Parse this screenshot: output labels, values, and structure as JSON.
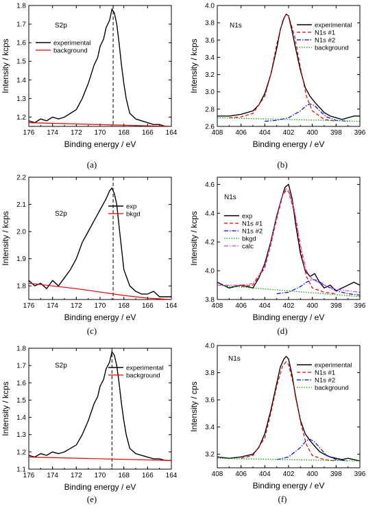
{
  "chart_data": [
    {
      "panel": "(a)",
      "type": "line",
      "annotation": "S2p",
      "xlabel": "Binding energy / eV",
      "ylabel": "Intensity / kcps",
      "xlim": [
        176,
        164
      ],
      "ylim": [
        1.15,
        1.8
      ],
      "xticks": [
        "176",
        "174",
        "172",
        "170",
        "168",
        "166",
        "164"
      ],
      "yticks": [
        "1.2",
        "1.3",
        "1.4",
        "1.5",
        "1.6",
        "1.7",
        "1.8"
      ],
      "vline_x": 168.9,
      "legend_position": "top-left",
      "series": [
        {
          "name": "experimental",
          "color": "#000000",
          "style": "solid",
          "x": [
            176,
            175.5,
            175,
            174.5,
            174,
            173.5,
            173,
            172.5,
            172,
            171.5,
            171,
            170.5,
            170.2,
            170,
            169.7,
            169.5,
            169.2,
            169,
            168.8,
            168.6,
            168.4,
            168.2,
            168,
            167.8,
            167.5,
            167,
            166.5,
            166,
            165.5,
            165,
            164.5,
            164.2
          ],
          "y": [
            1.18,
            1.17,
            1.19,
            1.18,
            1.2,
            1.19,
            1.2,
            1.22,
            1.24,
            1.3,
            1.38,
            1.48,
            1.52,
            1.58,
            1.62,
            1.68,
            1.72,
            1.78,
            1.76,
            1.7,
            1.6,
            1.48,
            1.38,
            1.3,
            1.22,
            1.19,
            1.18,
            1.17,
            1.16,
            1.16,
            1.15,
            1.15
          ]
        },
        {
          "name": "background",
          "color": "#e00000",
          "style": "solid",
          "x": [
            176,
            164.2
          ],
          "y": [
            1.17,
            1.15
          ]
        }
      ]
    },
    {
      "panel": "(b)",
      "type": "line",
      "annotation": "N1s",
      "xlabel": "Binding energy / eV",
      "ylabel": "Intensity / kcps",
      "xlim": [
        408,
        396
      ],
      "ylim": [
        2.6,
        4.0
      ],
      "xticks": [
        "408",
        "406",
        "404",
        "402",
        "400",
        "398",
        "396"
      ],
      "yticks": [
        "2.6",
        "2.8",
        "3.0",
        "3.2",
        "3.4",
        "3.6",
        "3.8",
        "4.0"
      ],
      "legend_position": "top-right",
      "series": [
        {
          "name": "experimental",
          "color": "#000000",
          "style": "solid",
          "x": [
            408,
            407,
            406,
            405,
            404.5,
            404,
            403.5,
            403,
            402.7,
            402.4,
            402.2,
            402,
            401.7,
            401.4,
            401,
            400.6,
            400.2,
            399.8,
            399.4,
            399,
            398.5,
            398,
            397.5,
            397,
            396.5,
            396
          ],
          "y": [
            2.72,
            2.72,
            2.74,
            2.78,
            2.85,
            2.98,
            3.2,
            3.5,
            3.72,
            3.85,
            3.9,
            3.88,
            3.7,
            3.5,
            3.25,
            3.05,
            2.95,
            2.88,
            2.82,
            2.76,
            2.72,
            2.7,
            2.68,
            2.7,
            2.72,
            2.72
          ]
        },
        {
          "name": "N1s #1",
          "color": "#e00000",
          "style": "dashed",
          "x": [
            407,
            406,
            405,
            404,
            403.5,
            403,
            402.5,
            402.2,
            402,
            401.5,
            401,
            400.5,
            400,
            399,
            398
          ],
          "y": [
            2.7,
            2.71,
            2.75,
            2.95,
            3.2,
            3.55,
            3.82,
            3.9,
            3.88,
            3.65,
            3.28,
            2.95,
            2.78,
            2.68,
            2.66
          ]
        },
        {
          "name": "N1s #2",
          "color": "#0000dd",
          "style": "dashdot",
          "x": [
            404,
            403,
            402,
            401,
            400.5,
            400.2,
            399.8,
            399.3,
            398.8,
            398,
            397
          ],
          "y": [
            2.66,
            2.67,
            2.7,
            2.78,
            2.84,
            2.86,
            2.84,
            2.77,
            2.71,
            2.67,
            2.66
          ]
        },
        {
          "name": "background",
          "color": "#009900",
          "style": "dotted",
          "x": [
            408,
            396
          ],
          "y": [
            2.7,
            2.66
          ]
        }
      ]
    },
    {
      "panel": "(c)",
      "type": "line",
      "annotation": "S2p",
      "xlabel": "Binding energy / eV",
      "ylabel": "Intensity / kcps",
      "xlim": [
        176,
        164
      ],
      "ylim": [
        1.75,
        2.2
      ],
      "xticks": [
        "176",
        "174",
        "172",
        "170",
        "168",
        "166",
        "164"
      ],
      "yticks": [
        "1.8",
        "1.9",
        "2.0",
        "2.1",
        "2.2"
      ],
      "vline_x": 168.9,
      "legend_position": "top-right",
      "series": [
        {
          "name": "exp",
          "color": "#000000",
          "style": "solid",
          "x": [
            176,
            175.5,
            175,
            174.5,
            174,
            173.5,
            173,
            172.5,
            172,
            171.5,
            171,
            170.5,
            170,
            169.5,
            169.2,
            169,
            168.8,
            168.6,
            168.4,
            168.2,
            168,
            167.5,
            167,
            166.5,
            166,
            165.5,
            165,
            164.5,
            164
          ],
          "y": [
            1.82,
            1.8,
            1.81,
            1.79,
            1.82,
            1.8,
            1.83,
            1.86,
            1.9,
            1.96,
            2.0,
            2.04,
            2.08,
            2.12,
            2.15,
            2.16,
            2.14,
            2.1,
            2.02,
            1.94,
            1.86,
            1.8,
            1.78,
            1.77,
            1.77,
            1.78,
            1.76,
            1.76,
            1.76
          ]
        },
        {
          "name": "bkgd",
          "color": "#e00000",
          "style": "solid",
          "x": [
            176,
            172,
            168,
            166,
            164
          ],
          "y": [
            1.81,
            1.79,
            1.765,
            1.755,
            1.75
          ]
        }
      ]
    },
    {
      "panel": "(d)",
      "type": "line",
      "annotation": "N1s",
      "xlabel": "Binding energy / eV",
      "ylabel": "Intensity / kcps",
      "xlim": [
        408,
        396
      ],
      "ylim": [
        3.8,
        4.65
      ],
      "xticks": [
        "408",
        "406",
        "404",
        "402",
        "400",
        "398",
        "396"
      ],
      "yticks": [
        "3.8",
        "4.0",
        "4.2",
        "4.4",
        "4.6"
      ],
      "legend_position": "top-left",
      "series": [
        {
          "name": "exp",
          "color": "#000000",
          "style": "solid",
          "x": [
            408,
            407,
            406,
            405,
            404.5,
            404,
            403.5,
            403,
            402.6,
            402.3,
            402,
            401.7,
            401.4,
            401,
            400.6,
            400.2,
            399.8,
            399.4,
            399,
            398.5,
            398,
            397.5,
            397,
            396.5,
            396
          ],
          "y": [
            3.92,
            3.88,
            3.9,
            3.88,
            3.95,
            4.05,
            4.2,
            4.38,
            4.5,
            4.58,
            4.6,
            4.5,
            4.32,
            4.12,
            4.0,
            3.96,
            3.98,
            3.92,
            3.88,
            3.9,
            3.86,
            3.88,
            3.9,
            3.92,
            3.9
          ]
        },
        {
          "name": "N1s #1",
          "color": "#e00000",
          "style": "dashed",
          "x": [
            406,
            405,
            404,
            403.5,
            403,
            402.5,
            402.2,
            402,
            401.5,
            401,
            400.5,
            400,
            399,
            398
          ],
          "y": [
            3.89,
            3.9,
            4.02,
            4.18,
            4.36,
            4.52,
            4.56,
            4.55,
            4.4,
            4.15,
            3.96,
            3.88,
            3.85,
            3.84
          ]
        },
        {
          "name": "N1s #2",
          "color": "#0000dd",
          "style": "dashdot",
          "x": [
            403,
            402,
            401,
            400.5,
            400,
            399.5,
            399,
            398,
            397,
            396
          ],
          "y": [
            3.84,
            3.85,
            3.89,
            3.92,
            3.94,
            3.93,
            3.9,
            3.86,
            3.84,
            3.83
          ]
        },
        {
          "name": "bkgd",
          "color": "#009900",
          "style": "dotted",
          "x": [
            408,
            396
          ],
          "y": [
            3.9,
            3.82
          ]
        },
        {
          "name": "calc",
          "color": "#cc44cc",
          "style": "dashdot",
          "x": [
            408,
            406,
            405,
            404,
            403.5,
            403,
            402.5,
            402.2,
            402,
            401.5,
            401,
            400.5,
            400,
            399,
            398,
            396
          ],
          "y": [
            3.9,
            3.9,
            3.91,
            4.03,
            4.19,
            4.37,
            4.53,
            4.57,
            4.56,
            4.42,
            4.18,
            4.0,
            3.94,
            3.9,
            3.87,
            3.85
          ]
        }
      ]
    },
    {
      "panel": "(e)",
      "type": "line",
      "annotation": "S2p",
      "xlabel": "Binding energy / eV",
      "ylabel": "Intensity / kcps",
      "xlim": [
        176,
        164
      ],
      "ylim": [
        1.1,
        1.8
      ],
      "xticks": [
        "176",
        "174",
        "172",
        "170",
        "168",
        "166",
        "164"
      ],
      "yticks": [
        "1.1",
        "1.2",
        "1.3",
        "1.4",
        "1.5",
        "1.6",
        "1.7",
        "1.8"
      ],
      "vline_x": 169.0,
      "legend_position": "top-right",
      "series": [
        {
          "name": "experimental",
          "color": "#000000",
          "style": "solid",
          "x": [
            176,
            175.5,
            175,
            174.5,
            174,
            173.5,
            173,
            172.5,
            172,
            171.5,
            171,
            170.5,
            170.2,
            170,
            169.7,
            169.5,
            169.2,
            169,
            168.8,
            168.6,
            168.4,
            168.2,
            168,
            167.8,
            167.5,
            167,
            166.5,
            166,
            165.5,
            165,
            164.5,
            164
          ],
          "y": [
            1.18,
            1.17,
            1.19,
            1.18,
            1.2,
            1.19,
            1.2,
            1.22,
            1.24,
            1.3,
            1.38,
            1.48,
            1.52,
            1.58,
            1.62,
            1.68,
            1.72,
            1.78,
            1.76,
            1.7,
            1.6,
            1.48,
            1.38,
            1.3,
            1.22,
            1.19,
            1.18,
            1.17,
            1.16,
            1.16,
            1.15,
            1.15
          ]
        },
        {
          "name": "background",
          "color": "#e00000",
          "style": "solid",
          "x": [
            176,
            164
          ],
          "y": [
            1.17,
            1.15
          ]
        }
      ]
    },
    {
      "panel": "(f)",
      "type": "line",
      "annotation": "N1s",
      "xlabel": "Binding energy / eV",
      "ylabel": "Intensity / cps",
      "xlim": [
        408,
        396
      ],
      "ylim": [
        3.1,
        4.0
      ],
      "xticks": [
        "408",
        "406",
        "404",
        "402",
        "400",
        "398",
        "396"
      ],
      "yticks": [
        "3.2",
        "3.4",
        "3.6",
        "3.8",
        "4.0"
      ],
      "legend_position": "top-right",
      "series": [
        {
          "name": "experimental",
          "color": "#000000",
          "style": "solid",
          "x": [
            408,
            407,
            406,
            405,
            404.5,
            404,
            403.5,
            403,
            402.7,
            402.4,
            402.2,
            402,
            401.7,
            401.4,
            401,
            400.6,
            400.2,
            399.8,
            399.4,
            399,
            398.5,
            398,
            397.5,
            397,
            396.5,
            396
          ],
          "y": [
            3.18,
            3.17,
            3.18,
            3.2,
            3.25,
            3.35,
            3.52,
            3.72,
            3.84,
            3.9,
            3.92,
            3.9,
            3.78,
            3.62,
            3.45,
            3.35,
            3.3,
            3.26,
            3.22,
            3.2,
            3.18,
            3.17,
            3.16,
            3.17,
            3.16,
            3.15
          ]
        },
        {
          "name": "N1s #1",
          "color": "#e00000",
          "style": "dashed",
          "x": [
            406,
            405,
            404,
            403.5,
            403,
            402.5,
            402.2,
            402,
            401.5,
            401,
            400.5,
            400,
            399,
            398
          ],
          "y": [
            3.17,
            3.19,
            3.32,
            3.5,
            3.7,
            3.85,
            3.88,
            3.86,
            3.68,
            3.44,
            3.27,
            3.19,
            3.16,
            3.15
          ]
        },
        {
          "name": "N1s #2",
          "color": "#0000dd",
          "style": "dashdot",
          "x": [
            403,
            402,
            401,
            400.5,
            400.2,
            399.8,
            399.3,
            398.8,
            398,
            397
          ],
          "y": [
            3.16,
            3.18,
            3.25,
            3.3,
            3.31,
            3.29,
            3.24,
            3.19,
            3.16,
            3.15
          ]
        },
        {
          "name": "background",
          "color": "#009900",
          "style": "dotted",
          "x": [
            408,
            396
          ],
          "y": [
            3.17,
            3.15
          ]
        }
      ]
    }
  ]
}
